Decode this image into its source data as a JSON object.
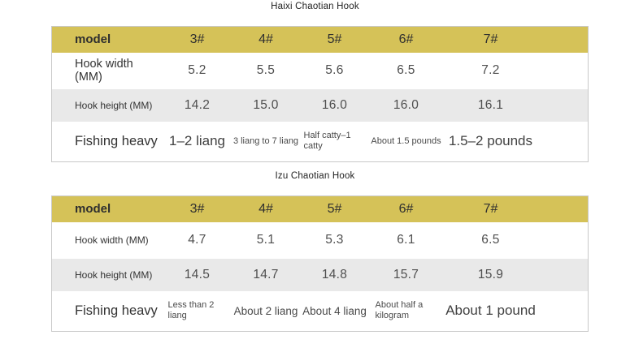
{
  "colors": {
    "header_bg": "#d5c258",
    "alt_row_bg": "#e9e9e9",
    "table_border": "#c9c9c9",
    "text_dark": "#333333",
    "text_value": "#4e4e4e"
  },
  "tables": [
    {
      "title": "Haixi Chaotian Hook",
      "header": {
        "label": "model",
        "cols": [
          "3#",
          "4#",
          "5#",
          "6#",
          "7#"
        ]
      },
      "rows": [
        {
          "label": "Hook width (MM)",
          "values": [
            "5.2",
            "5.5",
            "5.6",
            "6.5",
            "7.2"
          ]
        },
        {
          "label": "Hook height (MM)",
          "values": [
            "14.2",
            "15.0",
            "16.0",
            "16.0",
            "16.1"
          ]
        },
        {
          "label": "Fishing heavy",
          "values": [
            "1–2 liang",
            "3 liang to 7 liang",
            "Half catty–1 catty",
            "About 1.5 pounds",
            "1.5–2 pounds"
          ]
        }
      ]
    },
    {
      "title": "Izu Chaotian Hook",
      "header": {
        "label": "model",
        "cols": [
          "3#",
          "4#",
          "5#",
          "6#",
          "7#"
        ]
      },
      "rows": [
        {
          "label": "Hook width (MM)",
          "values": [
            "4.7",
            "5.1",
            "5.3",
            "6.1",
            "6.5"
          ]
        },
        {
          "label": "Hook height (MM)",
          "values": [
            "14.5",
            "14.7",
            "14.8",
            "15.7",
            "15.9"
          ]
        },
        {
          "label": "Fishing heavy",
          "values": [
            "Less than 2 liang",
            "About 2 liang",
            "About 4 liang",
            "About half a kilogram",
            "About 1 pound"
          ]
        }
      ]
    }
  ]
}
